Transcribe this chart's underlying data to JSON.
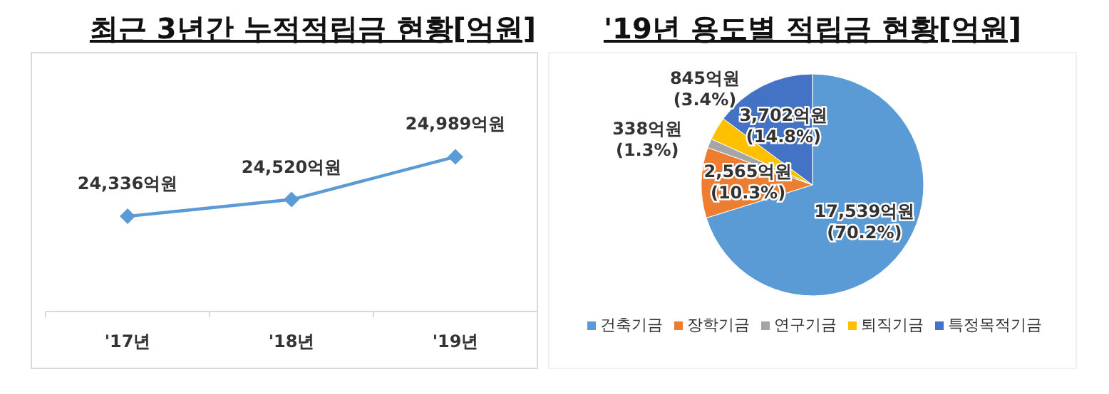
{
  "chart_data": [
    {
      "type": "line",
      "title": "최근 3년간 누적적립금 현황[억원]",
      "categories": [
        "'17년",
        "'18년",
        "'19년"
      ],
      "series": [
        {
          "color": "#5b9bd5",
          "values": [
            24336,
            24520,
            24989
          ],
          "value_labels": [
            "24,336억원",
            "24,520억원",
            "24,989억원"
          ]
        }
      ],
      "marker": "diamond",
      "legend": false,
      "grid": false
    },
    {
      "type": "pie",
      "title": "'19년 용도별 적립금 현황[억원]",
      "categories": [
        "건축기금",
        "장학기금",
        "연구기금",
        "퇴직기금",
        "특정목적기금"
      ],
      "values": [
        17539,
        2565,
        338,
        845,
        3702
      ],
      "colors": [
        "#5b9bd5",
        "#ed7d31",
        "#a5a5a5",
        "#ffc000",
        "#4472c4"
      ],
      "value_labels": [
        "17,539억원\n(70.2%)",
        "2,565억원\n(10.3%)",
        "338억원\n(1.3%)",
        "845억원\n(3.4%)",
        "3,702억원\n(14.8%)"
      ],
      "legend": "bottom"
    }
  ]
}
